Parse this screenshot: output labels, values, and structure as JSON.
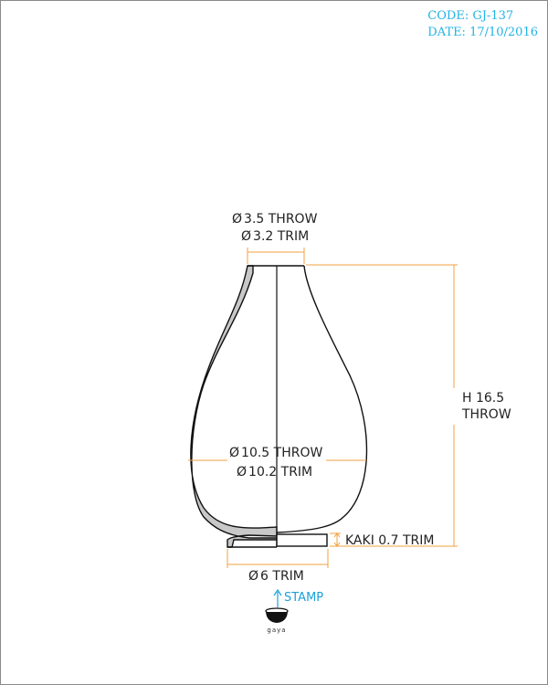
{
  "header": {
    "code": "CODE: GJ-137",
    "date": "DATE: 17/10/2016"
  },
  "dimensions": {
    "rim_throw": "3.5 THROW",
    "rim_trim": "3.2 TRIM",
    "body_throw": "10.5 THROW",
    "body_trim": "10.2 TRIM",
    "height_line1": "H 16.5",
    "height_line2": "THROW",
    "kaki": "KAKI 0.7 TRIM",
    "foot_trim": "6 TRIM",
    "diameter_symbol": "Ø"
  },
  "stamp": {
    "label": "STAMP",
    "logo_text": "gaya"
  },
  "colors": {
    "header": "#22b3e3",
    "dimension_lines": "#f0a040",
    "stamp_arrow": "#1aa0d8",
    "section_fill": "#c8c8c8"
  }
}
